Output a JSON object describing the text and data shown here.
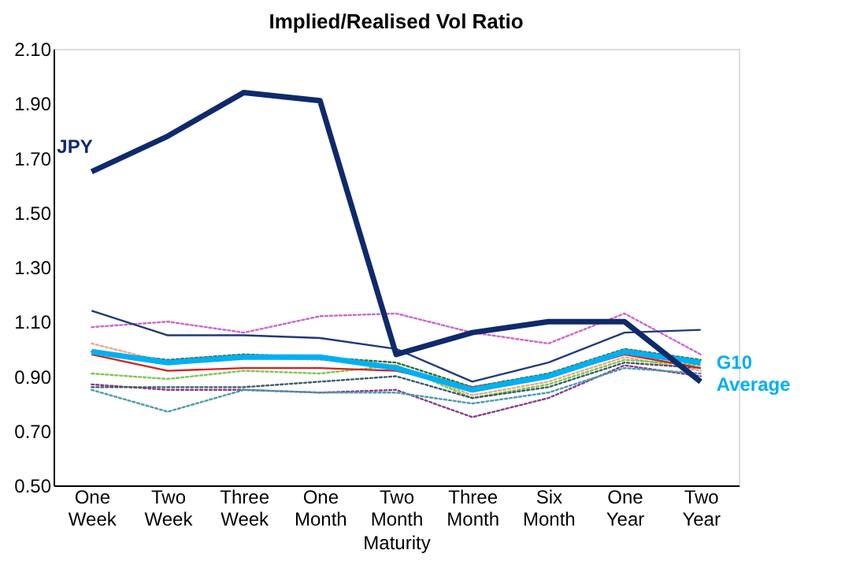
{
  "chart_data": {
    "type": "line",
    "title": "Implied/Realised Vol Ratio",
    "xlabel": "Maturity",
    "categories": [
      "One Week",
      "Two Week",
      "Three Week",
      "One Month",
      "Two Month",
      "Three Month",
      "Six Month",
      "One Year",
      "Two Year"
    ],
    "ylim": [
      0.5,
      2.1
    ],
    "yticks": [
      {
        "value": 0.5,
        "label": "0.50"
      },
      {
        "value": 0.7,
        "label": "0.70"
      },
      {
        "value": 0.9,
        "label": "0.90"
      },
      {
        "value": 1.1,
        "label": "1.10"
      },
      {
        "value": 1.3,
        "label": "1.30"
      },
      {
        "value": 1.5,
        "label": "1.50"
      },
      {
        "value": 1.7,
        "label": "1.70"
      },
      {
        "value": 1.9,
        "label": "1.90"
      },
      {
        "value": 2.1,
        "label": "2.10"
      }
    ],
    "grid": false,
    "legend": false,
    "marker": "none",
    "series": [
      {
        "color": "#cc66cc",
        "line_style": "dotted",
        "values": [
          1.08,
          1.1,
          1.06,
          1.12,
          1.13,
          1.06,
          1.02,
          1.13,
          0.98
        ]
      },
      {
        "color": "#1f3a7a",
        "line_style": "solid",
        "values": [
          1.14,
          1.05,
          1.05,
          1.04,
          1.0,
          0.88,
          0.95,
          1.06,
          1.07
        ]
      },
      {
        "color": "#f4a582",
        "line_style": "dotted",
        "values": [
          1.02,
          0.95,
          0.97,
          0.96,
          0.94,
          0.83,
          0.88,
          0.97,
          0.92
        ]
      },
      {
        "color": "#78c850",
        "line_style": "dotted",
        "values": [
          0.91,
          0.89,
          0.92,
          0.91,
          0.94,
          0.82,
          0.87,
          0.96,
          0.94
        ]
      },
      {
        "color": "#2e6b3a",
        "line_style": "dotted",
        "values": [
          0.99,
          0.96,
          0.98,
          0.97,
          0.95,
          0.86,
          0.91,
          1.0,
          0.96
        ]
      },
      {
        "color": "#8a3c8a",
        "line_style": "dotted",
        "values": [
          0.87,
          0.85,
          0.85,
          0.84,
          0.85,
          0.75,
          0.82,
          0.94,
          0.9
        ]
      },
      {
        "color": "#4a9ab0",
        "line_style": "dotted",
        "values": [
          0.85,
          0.77,
          0.85,
          0.84,
          0.84,
          0.8,
          0.84,
          0.93,
          0.91
        ]
      },
      {
        "color": "#3c5a6e",
        "line_style": "dotted",
        "values": [
          0.86,
          0.86,
          0.86,
          0.88,
          0.9,
          0.82,
          0.86,
          0.95,
          0.93
        ]
      },
      {
        "color": "#d62020",
        "line_style": "solid",
        "values": [
          0.98,
          0.92,
          0.93,
          0.93,
          0.92,
          0.86,
          0.9,
          0.98,
          0.93
        ]
      },
      {
        "name": "G10 Average",
        "color": "#00b0f0",
        "line_style": "solid",
        "values": [
          0.99,
          0.95,
          0.97,
          0.97,
          0.93,
          0.85,
          0.9,
          0.99,
          0.95
        ]
      },
      {
        "name": "JPY",
        "color": "#0f2a6b",
        "line_style": "solid",
        "values": [
          1.65,
          1.78,
          1.94,
          1.91,
          0.98,
          1.06,
          1.1,
          1.1,
          0.88
        ]
      }
    ]
  }
}
